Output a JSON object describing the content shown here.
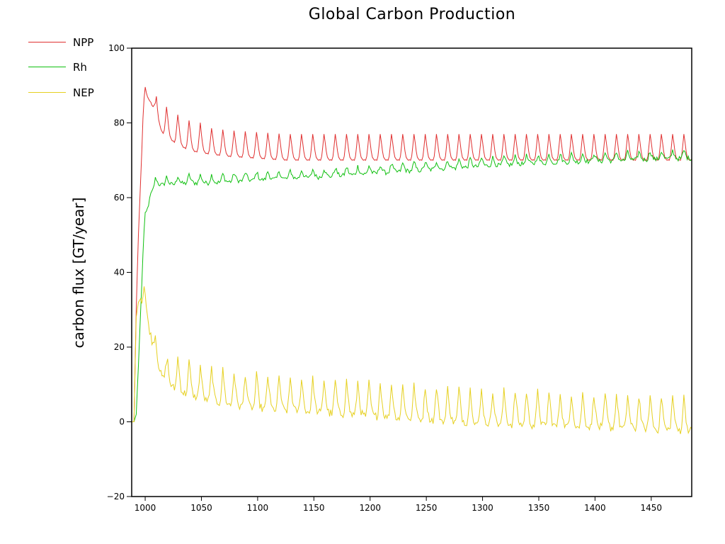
{
  "chart_data": {
    "type": "line",
    "title": "Global Carbon Production",
    "xlabel": "",
    "ylabel": "carbon flux [GT/year]",
    "xlim": [
      988,
      1486
    ],
    "ylim": [
      -20,
      100
    ],
    "xticks": [
      1000,
      1050,
      1100,
      1150,
      1200,
      1250,
      1300,
      1350,
      1400,
      1450
    ],
    "yticks": [
      -20,
      0,
      20,
      40,
      60,
      80,
      100
    ],
    "grid": false,
    "legend_position": "top-left",
    "series": [
      {
        "name": "NPP",
        "color": "#e03030",
        "x": [
          988,
          990,
          992,
          994,
          996,
          998,
          1000,
          1005,
          1010,
          1015,
          1020,
          1030,
          1040,
          1050,
          1060,
          1075,
          1100,
          1125,
          1150,
          1175,
          1200,
          1250,
          1300,
          1350,
          1400,
          1450,
          1486
        ],
        "values": [
          0,
          0,
          30,
          50,
          65,
          80,
          88,
          86,
          82,
          78,
          76.5,
          74.5,
          73,
          72.5,
          72,
          71.5,
          71,
          70.5,
          70.5,
          70.5,
          70.5,
          70.5,
          70.5,
          70.5,
          70.5,
          70.5,
          70.5
        ],
        "seasonal_amplitude_range": [
          0,
          7
        ]
      },
      {
        "name": "Rh",
        "color": "#10c010",
        "x": [
          988,
          990,
          992,
          994,
          996,
          998,
          1000,
          1005,
          1010,
          1020,
          1040,
          1060,
          1080,
          1100,
          1150,
          1200,
          1250,
          1300,
          1350,
          1400,
          1450,
          1486
        ],
        "values": [
          0,
          0,
          2,
          15,
          30,
          45,
          55,
          62,
          64.5,
          64.5,
          65,
          65,
          65.5,
          65.8,
          66.5,
          67.5,
          68.5,
          69.5,
          70.3,
          70.8,
          71.3,
          71.6
        ],
        "seasonal_amplitude_range": [
          0,
          2
        ]
      },
      {
        "name": "NEP",
        "color": "#e6d020",
        "x": [
          988,
          990,
          992,
          994,
          996,
          998,
          1000,
          1005,
          1010,
          1015,
          1020,
          1030,
          1050,
          1075,
          1100,
          1150,
          1200,
          1250,
          1300,
          1350,
          1400,
          1450,
          1486
        ],
        "values": [
          0,
          0,
          28,
          32,
          33,
          33,
          32,
          25,
          18,
          14,
          12,
          10,
          8,
          6.5,
          5.5,
          4.5,
          3.5,
          2.5,
          1.5,
          1,
          0.5,
          0,
          -0.5
        ],
        "seasonal_amplitude_range": [
          0,
          10
        ]
      }
    ]
  }
}
